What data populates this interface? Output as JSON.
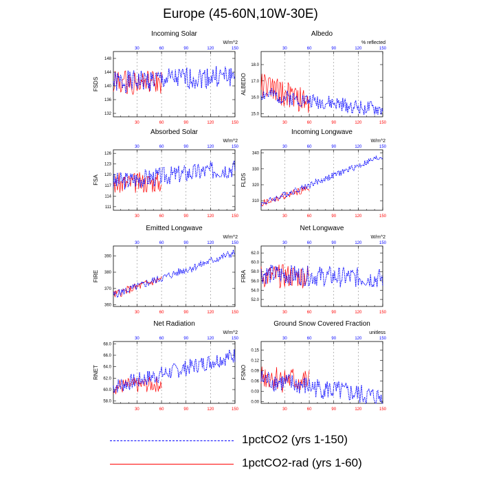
{
  "title": "Europe (45-60N,10W-30E)",
  "colors": {
    "series1": "#0000ff",
    "series2": "#ff0000",
    "grid": "#888888"
  },
  "legend": [
    {
      "label": "1pctCO2 (yrs 1-150)",
      "color": "#0000ff",
      "style": "dashed"
    },
    {
      "label": "1pctCO2-rad (yrs 1-60)",
      "color": "#ff0000",
      "style": "solid"
    }
  ],
  "chart_data": [
    {
      "type": "line",
      "title": "Incoming Solar",
      "ylabel": "FSDS",
      "units": "W/m^2",
      "xlim": [
        1,
        150
      ],
      "ylim": [
        131,
        150
      ],
      "yticks": [
        "132",
        "136",
        "140",
        "144",
        "148"
      ],
      "ytick_values": [
        132,
        136,
        140,
        144,
        148
      ],
      "xticks": [
        30,
        60,
        90,
        120,
        150
      ],
      "base": 141,
      "trend": 2,
      "noise": 3.2,
      "rbase": 141,
      "rtrend": 0,
      "rnoise": 3.5,
      "seed": 1
    },
    {
      "type": "line",
      "title": "Albedo",
      "ylabel": "ALBEDO",
      "units": "% reflected",
      "xlim": [
        1,
        150
      ],
      "ylim": [
        14.8,
        18.8
      ],
      "yticks": [
        "15.0",
        "16.0",
        "17.0",
        "18.0"
      ],
      "ytick_values": [
        15.0,
        16.0,
        17.0,
        18.0
      ],
      "xticks": [
        30,
        60,
        90,
        120,
        150
      ],
      "base": 16.2,
      "trend": -1.0,
      "noise": 0.45,
      "rbase": 16.8,
      "rtrend": -1.2,
      "rnoise": 0.8,
      "seed": 2
    },
    {
      "type": "line",
      "title": "Absorbed Solar",
      "ylabel": "FSA",
      "units": "W/m^2",
      "xlim": [
        1,
        150
      ],
      "ylim": [
        110,
        127
      ],
      "yticks": [
        "111",
        "114",
        "117",
        "120",
        "123",
        "126"
      ],
      "ytick_values": [
        111,
        114,
        117,
        120,
        123,
        126
      ],
      "xticks": [
        30,
        60,
        90,
        120,
        150
      ],
      "base": 118,
      "trend": 4,
      "noise": 2.6,
      "rbase": 117.5,
      "rtrend": 0.5,
      "rnoise": 3,
      "seed": 3
    },
    {
      "type": "line",
      "title": "Incoming Longwave",
      "ylabel": "FLDS",
      "units": "W/m^2",
      "xlim": [
        1,
        150
      ],
      "ylim": [
        304,
        342
      ],
      "yticks": [
        "310",
        "320",
        "330",
        "340"
      ],
      "ytick_values": [
        310,
        320,
        330,
        340
      ],
      "xticks": [
        30,
        60,
        90,
        120,
        150
      ],
      "base": 308,
      "trend": 30,
      "noise": 2.0,
      "rbase": 308,
      "rtrend": 10,
      "rnoise": 2.2,
      "seed": 4
    },
    {
      "type": "line",
      "title": "Emitted Longwave",
      "ylabel": "FIRE",
      "units": "W/m^2",
      "xlim": [
        1,
        150
      ],
      "ylim": [
        359,
        396
      ],
      "yticks": [
        "360",
        "370",
        "380",
        "390"
      ],
      "ytick_values": [
        360,
        370,
        380,
        390
      ],
      "xticks": [
        30,
        60,
        90,
        120,
        150
      ],
      "base": 366,
      "trend": 26,
      "noise": 2.4,
      "rbase": 366,
      "rtrend": 10,
      "rnoise": 2.6,
      "seed": 5
    },
    {
      "type": "line",
      "title": "Net Longwave",
      "ylabel": "FIRA",
      "units": "W/m^2",
      "xlim": [
        1,
        150
      ],
      "ylim": [
        50.5,
        63.5
      ],
      "yticks": [
        "52.0",
        "54.0",
        "56.0",
        "58.0",
        "60.0",
        "62.0"
      ],
      "ytick_values": [
        52.0,
        54.0,
        56.0,
        58.0,
        60.0,
        62.0
      ],
      "xticks": [
        30,
        60,
        90,
        120,
        150
      ],
      "base": 57.5,
      "trend": -1,
      "noise": 2.2,
      "rbase": 57,
      "rtrend": 0,
      "rnoise": 2.6,
      "seed": 6
    },
    {
      "type": "line",
      "title": "Net Radiation",
      "ylabel": "RNET",
      "units": "W/m^2",
      "xlim": [
        1,
        150
      ],
      "ylim": [
        57.6,
        68.4
      ],
      "yticks": [
        "58.0",
        "60.0",
        "62.0",
        "64.0",
        "66.0",
        "68.0"
      ],
      "ytick_values": [
        58.0,
        60.0,
        62.0,
        64.0,
        66.0,
        68.0
      ],
      "xticks": [
        30,
        60,
        90,
        120,
        150
      ],
      "base": 60.5,
      "trend": 5.5,
      "noise": 1.4,
      "rbase": 60.5,
      "rtrend": 0.5,
      "rnoise": 1.4,
      "seed": 7
    },
    {
      "type": "line",
      "title": "Ground Snow Covered Fraction",
      "ylabel": "FSNO",
      "units": "unitless",
      "xlim": [
        1,
        150
      ],
      "ylim": [
        -0.005,
        0.175
      ],
      "yticks": [
        "0.00",
        "0.03",
        "0.06",
        "0.09",
        "0.12",
        "0.15"
      ],
      "ytick_values": [
        0.0,
        0.03,
        0.06,
        0.09,
        0.12,
        0.15
      ],
      "xticks": [
        30,
        60,
        90,
        120,
        150
      ],
      "base": 0.065,
      "trend": -0.055,
      "noise": 0.03,
      "rbase": 0.075,
      "rtrend": -0.02,
      "rnoise": 0.04,
      "seed": 8
    }
  ]
}
